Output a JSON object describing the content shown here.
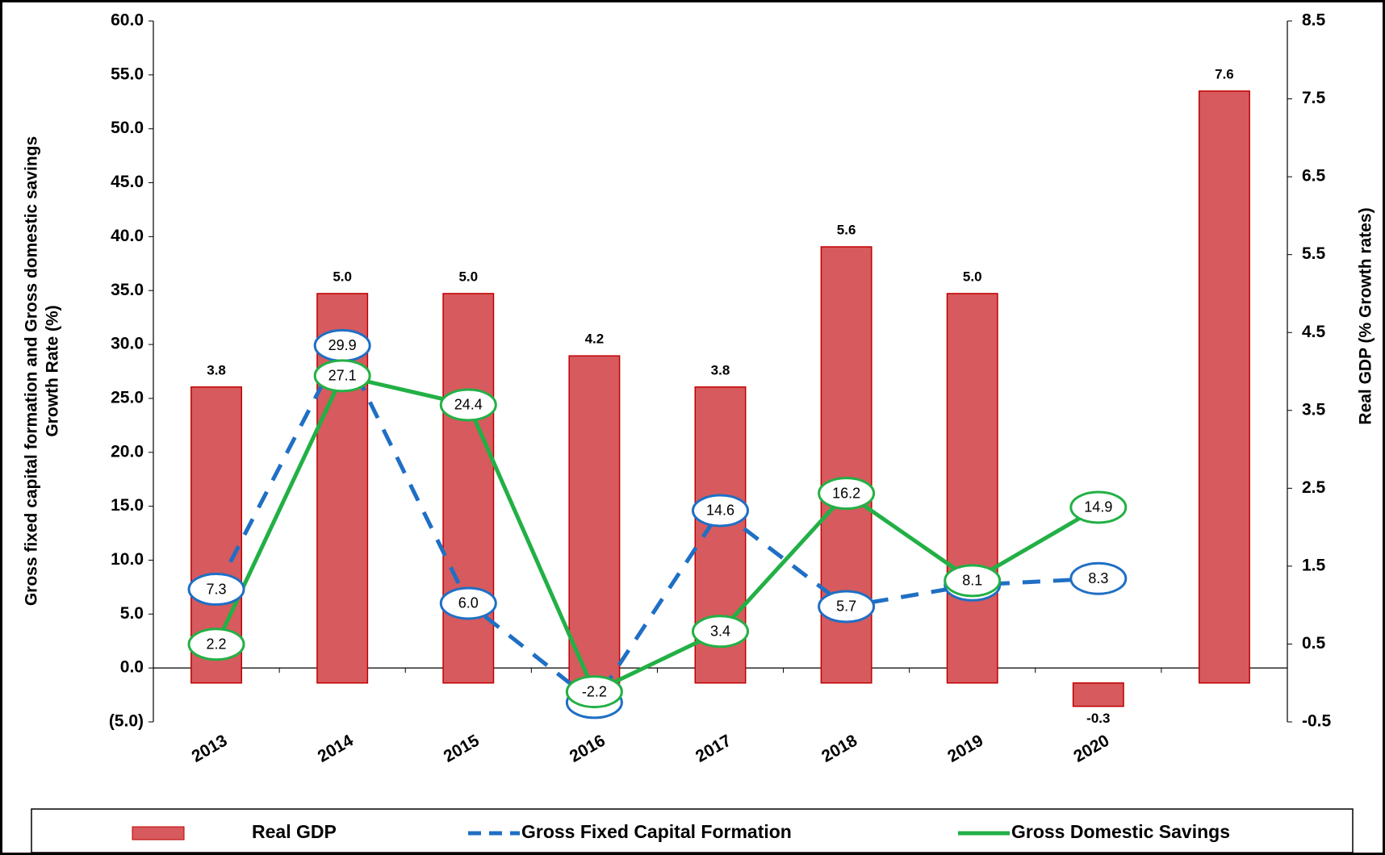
{
  "chart_data": {
    "type": "bar",
    "categories": [
      "2013",
      "2014",
      "2015",
      "2016",
      "2017",
      "2018",
      "2019",
      "2020",
      null
    ],
    "ylabel": [
      "Gross fixed capital formation and Gross domestic savings",
      "Growth Rate (%)"
    ],
    "y2label": "Real GDP (% Growth rates)",
    "ylim": [
      -5,
      60
    ],
    "yticks": [
      {
        "value": -5,
        "label": "(5.0)"
      },
      {
        "value": 0,
        "label": "0.0"
      },
      {
        "value": 5,
        "label": "5.0"
      },
      {
        "value": 10,
        "label": "10.0"
      },
      {
        "value": 15,
        "label": "15.0"
      },
      {
        "value": 20,
        "label": "20.0"
      },
      {
        "value": 25,
        "label": "25.0"
      },
      {
        "value": 30,
        "label": "30.0"
      },
      {
        "value": 35,
        "label": "35.0"
      },
      {
        "value": 40,
        "label": "40.0"
      },
      {
        "value": 45,
        "label": "45.0"
      },
      {
        "value": 50,
        "label": "50.0"
      },
      {
        "value": 55,
        "label": "55.0"
      },
      {
        "value": 60,
        "label": "60.0"
      }
    ],
    "y2lim": [
      -0.5,
      8.5
    ],
    "y2ticks": [
      -0.5,
      0.5,
      1.5,
      2.5,
      3.5,
      4.5,
      5.5,
      6.5,
      7.5,
      8.5
    ],
    "series": [
      {
        "name": "Real GDP",
        "type": "bar",
        "axis": "y2",
        "color": "#d65a5e",
        "values": [
          3.8,
          5.0,
          5.0,
          4.2,
          3.8,
          5.6,
          5.0,
          -0.3,
          7.6
        ],
        "value_labels": [
          "3.8",
          "5.0",
          "5.0",
          "4.2",
          "3.8",
          "5.6",
          "5.0",
          "-0.3",
          "7.6"
        ]
      },
      {
        "name": "Gross Fixed Capital Formation",
        "type": "line",
        "line_style": "dashed",
        "color": "#1f6fc4",
        "values": [
          7.3,
          29.9,
          6.0,
          -3.2,
          14.6,
          5.7,
          7.7,
          8.3,
          null
        ],
        "value_labels": [
          "7.3",
          "29.9",
          "6.0",
          "-3.2",
          "14.6",
          "5.7",
          "7.7",
          "8.3",
          null
        ]
      },
      {
        "name": "Gross Domestic Savings",
        "type": "line",
        "line_style": "solid",
        "color": "#22b045",
        "values": [
          2.2,
          27.1,
          24.4,
          -2.2,
          3.4,
          16.2,
          8.1,
          14.9,
          null
        ],
        "value_labels": [
          "2.2",
          "27.1",
          "24.4",
          "-2.2",
          "3.4",
          "16.2",
          "8.1",
          "14.9",
          null
        ]
      }
    ]
  }
}
